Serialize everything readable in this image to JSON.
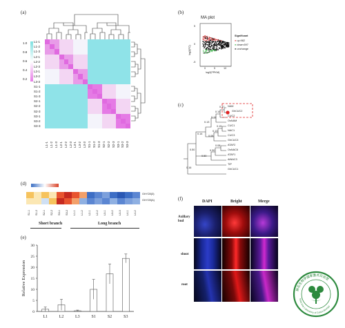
{
  "panel_labels": {
    "a": "(a)",
    "b": "(b)",
    "c": "(c)",
    "d": "(d)",
    "e": "(e)",
    "f": "(f)"
  },
  "panel_a": {
    "legend_ticks": [
      "1.0",
      "0.8",
      "0.6",
      "0.4",
      "0.2"
    ],
    "row_labels": [
      "L1-1",
      "L1-2",
      "L1-3",
      "L2-1",
      "L2-2",
      "L2-3",
      "L3-1",
      "L3-2",
      "L3-3",
      "S1-1",
      "S1-2",
      "S1-3",
      "S2-1",
      "S2-2",
      "S2-3",
      "S3-1",
      "S3-2",
      "S3-3"
    ],
    "col_labels": [
      "L1-1",
      "L1-2",
      "L1-3",
      "L2-1",
      "L2-2",
      "L2-3",
      "L3-1",
      "L3-2",
      "L3-3",
      "S1-1",
      "S1-2",
      "S1-3",
      "S2-1",
      "S2-2",
      "S2-3",
      "S3-1",
      "S3-2",
      "S3-3"
    ]
  },
  "panel_b": {
    "title": "MA plot",
    "xlabel": "log2(FPKM)",
    "ylabel": "log2(FC)",
    "x_ticks": [
      "0",
      "5",
      "10"
    ],
    "y_ticks": [
      "5",
      "0",
      "-5"
    ],
    "legend_title": "Significant",
    "legend_items": [
      {
        "label": "up:982",
        "color": "#e23b3b"
      },
      {
        "label": "down:697",
        "color": "#3cb84a"
      },
      {
        "label": "unchange",
        "color": "#222222"
      }
    ]
  },
  "panel_c": {
    "taxa": [
      "NAM",
      "GhCUC2",
      "CUC2",
      "OsNAM",
      "CUC1",
      "NAC1",
      "CUC3",
      "GhCUC3",
      "ATAF2",
      "OsNAC6",
      "ATAF1",
      "AtNAC3",
      "TIP",
      "GhCUC1"
    ],
    "support": [
      "0.37",
      "0.14",
      "0.11",
      "0.13",
      "0.15",
      "0.13",
      "0.08",
      "0.14",
      "0.08",
      "0.30",
      "0.50",
      "0.50",
      "0.16"
    ],
    "highlight_color": "#e02020"
  },
  "panel_d": {
    "row_labels": [
      "GhYCB(3)",
      "GhYCB(A)"
    ],
    "col_labels": [
      "S1-1",
      "S1-2",
      "S2-1",
      "S2-2",
      "S3-1",
      "S3-2",
      "L1-1",
      "L1-2",
      "L2-1",
      "L2-2",
      "L3-1",
      "L3-2",
      "L3-3",
      "L4-1",
      "L4-2"
    ],
    "group_labels": [
      "Short branch",
      "Long branch"
    ],
    "legend_ticks": [
      "-1",
      "0",
      "1"
    ]
  },
  "chart_data": {
    "type": "bar",
    "categories": [
      "L1",
      "L2",
      "L3",
      "S1",
      "S2",
      "S3"
    ],
    "values": [
      1.0,
      3.0,
      0.3,
      10.0,
      17.0,
      24.0
    ],
    "errors": [
      1.0,
      2.5,
      0.3,
      4.5,
      4.5,
      2.0
    ],
    "ylabel": "Relative Expression",
    "xlabel": "",
    "ylim": [
      0,
      30
    ],
    "y_ticks": [
      "0",
      "5",
      "10",
      "15",
      "20",
      "25",
      "30"
    ]
  },
  "panel_f": {
    "col_headers": [
      "DAPI",
      "Bright",
      "Merge"
    ],
    "row_headers": [
      "Axillary bud",
      "shoot",
      "root"
    ]
  },
  "watermark": {
    "text_cn": "棉花生物学国家重点实验室",
    "text_en": "State Key Laboratory of Cotton Biology",
    "color": "#2d8a3e"
  }
}
